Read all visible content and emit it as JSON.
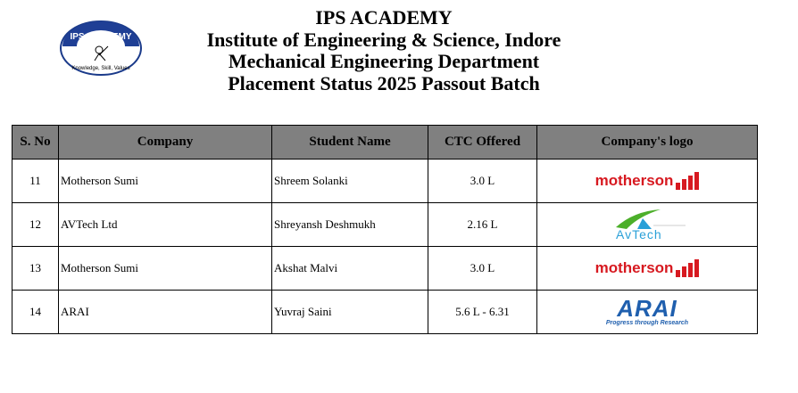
{
  "header": {
    "lines": [
      "IPS ACADEMY",
      "Institute of Engineering & Science, Indore",
      "Mechanical Engineering Department",
      "Placement Status 2025 Passout Batch"
    ],
    "logo_text": "IPS ACADEMY",
    "logo_motto": "Knowledge, Skill, Values"
  },
  "table": {
    "columns": [
      "S. No",
      "Company",
      "Student Name",
      "CTC Offered",
      "Company's  logo"
    ],
    "rows": [
      {
        "sno": "11",
        "company": "Motherson Sumi",
        "student": "Shreem Solanki",
        "ctc": "3.0 L",
        "logo": "motherson"
      },
      {
        "sno": "12",
        "company": "AVTech Ltd",
        "student": "Shreyansh Deshmukh",
        "ctc": "2.16 L",
        "logo": "AvTech"
      },
      {
        "sno": "13",
        "company": "Motherson Sumi",
        "student": "Akshat Malvi",
        "ctc": "3.0 L",
        "logo": "motherson"
      },
      {
        "sno": "14",
        "company": "ARAI",
        "student": "Yuvraj Saini",
        "ctc": "5.6 L - 6.31",
        "logo": "ARAI",
        "logo_tagline": "Progress through Research"
      }
    ]
  },
  "colors": {
    "header_bg": "#808080",
    "motherson": "#d71920",
    "arai": "#1f5fae",
    "avtech": "#2aa0d8"
  }
}
